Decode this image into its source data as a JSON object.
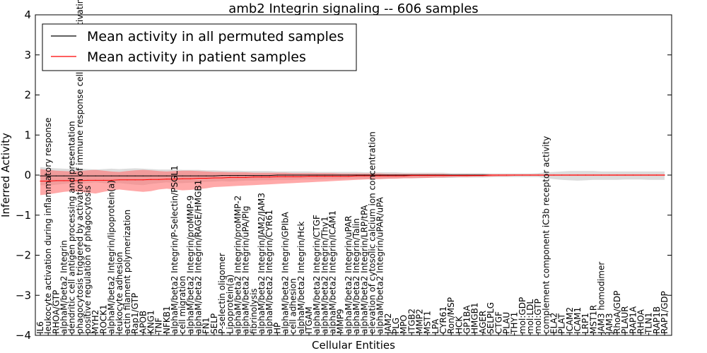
{
  "chart_data": {
    "type": "line",
    "title": "amb2 Integrin signaling -- 606 samples",
    "xlabel": "Cellular Entities",
    "ylabel": "Inferred Activity",
    "ylim": [
      -4,
      4
    ],
    "yticks": [
      -4,
      -3,
      -2,
      -1,
      0,
      1,
      2,
      3,
      4
    ],
    "grid": false,
    "legend_position": "top-left",
    "categories": [
      "IL6",
      "leukocyte activation during inflammatory response",
      "RHOA/GTP",
      "alphaM/beta2 Integrin",
      "dendritic cell antigen processing and presentation",
      "phagocytosis triggered by activation of immune response cell surface activating receptor",
      "positive regulation of phagocytosis",
      "MYH2",
      "ROCK1",
      "alphaM/beta2 Integrin/lipoprotein(a)",
      "leukocyte adhesion",
      "actin filament polymerization",
      "Rap1/GTP",
      "APOB",
      "KNG1",
      "TNF",
      "NFKB1",
      "alphaM/beta2 Integrin/P-Selectin/PSGL1",
      "cell migration",
      "alphaM/beta2 Integrin/proMMP-9",
      "alphaM/beta2 Integrin/RAGE/HMGB1",
      "FN1",
      "SELP",
      "P-selectin oligomer",
      "Lipoprotein(a)",
      "alphaM/beta2 Integrin/proMMP-2",
      "alphaM/beta2 Integrin/uPA/Plg",
      "fibrinolysis",
      "alphaM/beta2 Integrin/JAM2/JAM3",
      "alphaM/beta2 Integrin/CYR61",
      "HP",
      "alphaM/beta2 Integrin/GPIbA",
      "cell adhesion",
      "alphaM/beta2 Integrin/Hck",
      "ITGAM",
      "alphaM/beta2 Integrin/CTGF",
      "alphaM/beta2 Integrin/Thy1",
      "alphaM/beta2 Integrin/ICAM1",
      "MMP9",
      "alphaM/beta2 Integrin/uPAR",
      "alphaM/beta2 Integrin/Talin",
      "alphaM/beta2 Integrin/LRP/tPA",
      "elevation of cytosolic calcium ion concentration",
      "alphaM/beta2 Integrin/uPAR/uPA",
      "JAM2",
      "PLG",
      "MPO",
      "ITGB2",
      "MMP2",
      "MST1",
      "LPA",
      "CYR61",
      "Ron/MSP",
      "HCK",
      "GP1BA",
      "HMGB1",
      "AGER",
      "SELPLG",
      "CTGF",
      "PLAU",
      "THY1",
      "mol:GDP",
      "mol:LDL",
      "mol:GTP",
      "complement component iC3b receptor activity",
      "ELA2",
      "PLAT",
      "ICAM2",
      "ICAM1",
      "LRP1",
      "MST1R",
      "JAM3 homodimer",
      "JAM3",
      "RhoA/GDP",
      "PLAUR",
      "RAP1A",
      "RHOA",
      "TLN1",
      "RAP1B",
      "RAP1/GDP"
    ],
    "series": [
      {
        "name": "Mean activity in all permuted samples",
        "color": "#000000",
        "band_color": "#bfbfbf",
        "values": [
          -0.02,
          -0.02,
          -0.02,
          -0.02,
          -0.02,
          -0.02,
          -0.02,
          -0.02,
          -0.02,
          -0.02,
          -0.02,
          -0.02,
          -0.02,
          -0.02,
          -0.02,
          -0.02,
          -0.02,
          -0.02,
          -0.02,
          -0.02,
          -0.02,
          -0.02,
          -0.02,
          -0.01,
          -0.01,
          -0.01,
          -0.01,
          -0.01,
          -0.01,
          -0.01,
          0.0,
          0.0,
          0.0,
          0.0,
          0.0,
          0.0,
          0.0,
          0.0,
          0.0,
          0.0,
          0.0,
          0.0,
          0.0,
          0.0,
          0.0,
          0.0,
          0.0,
          0.0,
          0.0,
          0.0,
          0.0,
          0.0,
          0.0,
          0.0,
          0.0,
          0.0,
          0.0,
          0.0,
          0.0,
          0.0,
          0.0,
          0.0,
          0.0,
          0.0,
          0.0,
          0.0,
          0.0,
          0.0,
          0.0,
          0.0,
          0.0,
          0.0,
          0.0,
          0.0,
          0.0,
          0.0,
          0.0,
          0.0,
          0.0,
          0.0
        ],
        "band_lower": [
          -0.25,
          -0.26,
          -0.24,
          -0.22,
          -0.2,
          -0.22,
          -0.2,
          -0.18,
          -0.2,
          -0.22,
          -0.2,
          -0.22,
          -0.24,
          -0.25,
          -0.22,
          -0.2,
          -0.18,
          -0.2,
          -0.2,
          -0.19,
          -0.18,
          -0.17,
          -0.16,
          -0.15,
          -0.16,
          -0.15,
          -0.14,
          -0.14,
          -0.13,
          -0.13,
          -0.12,
          -0.12,
          -0.12,
          -0.11,
          -0.11,
          -0.11,
          -0.1,
          -0.1,
          -0.1,
          -0.09,
          -0.09,
          -0.09,
          -0.09,
          -0.09,
          -0.09,
          -0.08,
          -0.08,
          -0.08,
          -0.08,
          -0.07,
          -0.07,
          -0.07,
          -0.07,
          -0.06,
          -0.06,
          -0.06,
          -0.06,
          -0.05,
          -0.05,
          -0.05,
          -0.05,
          -0.05,
          -0.05,
          -0.05,
          -0.08,
          -0.1,
          -0.12,
          -0.13,
          -0.14,
          -0.13,
          -0.12,
          -0.12,
          -0.12,
          -0.12,
          -0.11,
          -0.11,
          -0.11,
          -0.12,
          -0.12,
          -0.12
        ],
        "band_upper": [
          0.2,
          0.18,
          0.17,
          0.16,
          0.15,
          0.16,
          0.15,
          0.14,
          0.15,
          0.16,
          0.15,
          0.16,
          0.17,
          0.16,
          0.15,
          0.14,
          0.14,
          0.14,
          0.13,
          0.13,
          0.13,
          0.12,
          0.12,
          0.11,
          0.11,
          0.11,
          0.1,
          0.1,
          0.1,
          0.1,
          0.09,
          0.09,
          0.09,
          0.09,
          0.09,
          0.08,
          0.08,
          0.08,
          0.08,
          0.08,
          0.08,
          0.07,
          0.07,
          0.07,
          0.07,
          0.07,
          0.06,
          0.06,
          0.06,
          0.06,
          0.06,
          0.06,
          0.05,
          0.05,
          0.05,
          0.05,
          0.05,
          0.04,
          0.04,
          0.04,
          0.04,
          0.04,
          0.04,
          0.05,
          0.07,
          0.08,
          0.09,
          0.1,
          0.1,
          0.1,
          0.1,
          0.09,
          0.09,
          0.09,
          0.09,
          0.09,
          0.09,
          0.09,
          0.09,
          0.09
        ]
      },
      {
        "name": "Mean activity in patient samples",
        "color": "#ff0000",
        "band_color": "#ff6f6f",
        "values": [
          -0.15,
          -0.15,
          -0.14,
          -0.14,
          -0.14,
          -0.14,
          -0.13,
          -0.13,
          -0.13,
          -0.13,
          -0.12,
          -0.12,
          -0.12,
          -0.12,
          -0.11,
          -0.11,
          -0.1,
          -0.1,
          -0.09,
          -0.09,
          -0.08,
          -0.08,
          -0.07,
          -0.07,
          -0.06,
          -0.06,
          -0.06,
          -0.05,
          -0.05,
          -0.05,
          -0.04,
          -0.04,
          -0.04,
          -0.04,
          -0.03,
          -0.03,
          -0.03,
          -0.03,
          -0.03,
          -0.03,
          -0.02,
          -0.02,
          -0.02,
          -0.02,
          -0.02,
          -0.02,
          -0.02,
          -0.01,
          -0.01,
          -0.01,
          -0.01,
          -0.01,
          -0.01,
          -0.01,
          -0.01,
          -0.01,
          -0.01,
          0.0,
          0.0,
          0.0,
          0.0,
          0.0,
          0.0,
          0.0,
          0.0,
          0.0,
          0.0,
          0.0,
          0.0,
          0.0,
          0.0,
          0.0,
          0.0,
          0.0,
          0.0,
          0.0,
          0.0,
          0.0,
          0.0,
          0.0
        ],
        "band_lower": [
          -0.5,
          -0.48,
          -0.45,
          -0.42,
          -0.4,
          -0.42,
          -0.44,
          -0.46,
          -0.42,
          -0.38,
          -0.36,
          -0.38,
          -0.4,
          -0.42,
          -0.4,
          -0.36,
          -0.34,
          -0.36,
          -0.38,
          -0.37,
          -0.35,
          -0.33,
          -0.3,
          -0.29,
          -0.28,
          -0.27,
          -0.26,
          -0.25,
          -0.24,
          -0.23,
          -0.22,
          -0.21,
          -0.2,
          -0.19,
          -0.18,
          -0.17,
          -0.16,
          -0.15,
          -0.14,
          -0.13,
          -0.12,
          -0.11,
          -0.1,
          -0.1,
          -0.09,
          -0.09,
          -0.08,
          -0.08,
          -0.07,
          -0.07,
          -0.06,
          -0.06,
          -0.05,
          -0.05,
          -0.05,
          -0.04,
          -0.04,
          -0.04,
          -0.03,
          -0.03,
          -0.02,
          -0.02,
          -0.02,
          -0.02,
          -0.02,
          -0.02,
          -0.02,
          -0.02,
          -0.02,
          -0.02,
          -0.02,
          -0.02,
          -0.02,
          -0.02,
          -0.02,
          -0.02,
          -0.02,
          -0.02,
          -0.02,
          -0.02
        ],
        "band_upper": [
          0.15,
          0.13,
          0.11,
          0.1,
          0.09,
          0.1,
          0.12,
          0.13,
          0.11,
          0.09,
          0.08,
          0.1,
          0.12,
          0.13,
          0.12,
          0.1,
          0.09,
          0.1,
          0.11,
          0.11,
          0.1,
          0.09,
          0.08,
          0.08,
          0.07,
          0.07,
          0.07,
          0.06,
          0.06,
          0.06,
          0.06,
          0.06,
          0.05,
          0.05,
          0.05,
          0.05,
          0.05,
          0.05,
          0.04,
          0.04,
          0.04,
          0.04,
          0.04,
          0.04,
          0.03,
          0.03,
          0.03,
          0.03,
          0.03,
          0.03,
          0.03,
          0.03,
          0.02,
          0.02,
          0.02,
          0.02,
          0.02,
          0.02,
          0.02,
          0.02,
          0.02,
          0.02,
          0.02,
          0.02,
          0.02,
          0.02,
          0.02,
          0.02,
          0.02,
          0.02,
          0.02,
          0.02,
          0.02,
          0.02,
          0.02,
          0.02,
          0.02,
          0.02,
          0.02,
          0.02
        ]
      }
    ]
  }
}
